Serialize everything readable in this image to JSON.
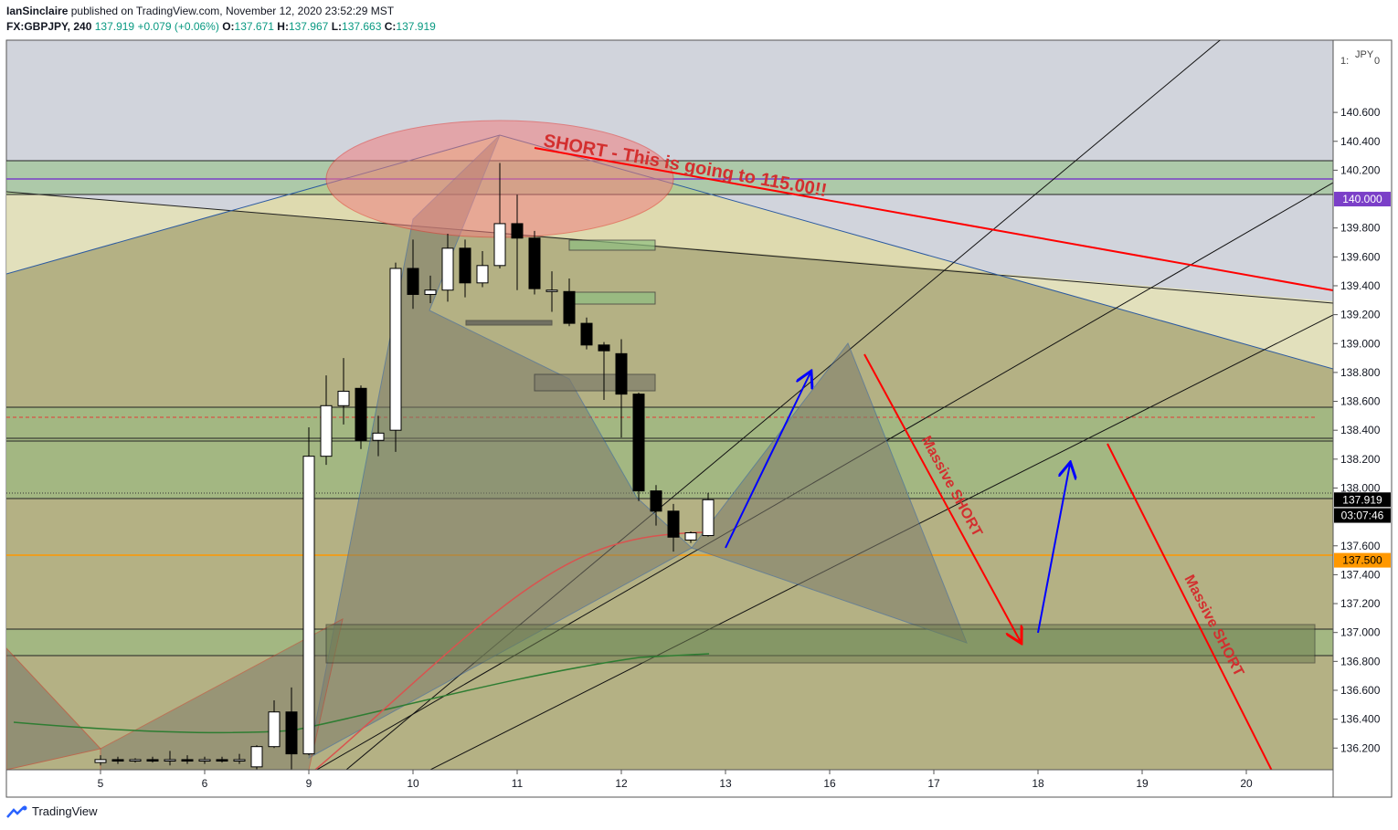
{
  "header": {
    "author": "IanSinclaire",
    "published_text": "published on TradingView.com, November 12, 2020 23:52:29 MST",
    "symbol": "FX:GBPJPY, 240",
    "last": "137.919",
    "change": "+0.079 (+0.06%)",
    "o_label": "O:",
    "o": "137.671",
    "h_label": "H:",
    "h": "137.967",
    "l_label": "L:",
    "l": "137.663",
    "c_label": "C:",
    "c": "137.919"
  },
  "footer": {
    "brand": "TradingView"
  },
  "chart_data": {
    "type": "candlestick",
    "currency": "JPY",
    "scale_top_label": "1:",
    "scale_top_right": "0",
    "ylim": [
      136.05,
      141.1
    ],
    "y_ticks": [
      "140.600",
      "140.400",
      "140.200",
      "139.800",
      "139.600",
      "139.400",
      "139.200",
      "139.000",
      "138.800",
      "138.600",
      "138.400",
      "138.200",
      "138.000",
      "137.600",
      "137.400",
      "137.200",
      "137.000",
      "136.800",
      "136.600",
      "136.400",
      "136.200"
    ],
    "x_ticks": [
      "5",
      "6",
      "9",
      "10",
      "11",
      "12",
      "13",
      "16",
      "17",
      "18",
      "19",
      "20"
    ],
    "price_labels": [
      {
        "price": 140.0,
        "text": "140.000",
        "color": "#7b3fc8"
      },
      {
        "price": 137.919,
        "text": "137.919",
        "color": "#000000"
      },
      {
        "price": 137.81,
        "text": "03:07:46",
        "color": "#000000"
      },
      {
        "price": 137.5,
        "text": "137.500",
        "color": "#ff9800"
      }
    ],
    "candles": [
      {
        "o": 136.1,
        "h": 136.15,
        "l": 136.08,
        "c": 136.12
      },
      {
        "o": 136.12,
        "h": 136.14,
        "l": 136.09,
        "c": 136.11
      },
      {
        "o": 136.11,
        "h": 136.13,
        "l": 136.1,
        "c": 136.12
      },
      {
        "o": 136.12,
        "h": 136.14,
        "l": 136.1,
        "c": 136.11
      },
      {
        "o": 136.11,
        "h": 136.18,
        "l": 136.08,
        "c": 136.12
      },
      {
        "o": 136.12,
        "h": 136.15,
        "l": 136.09,
        "c": 136.11
      },
      {
        "o": 136.11,
        "h": 136.14,
        "l": 136.09,
        "c": 136.12
      },
      {
        "o": 136.12,
        "h": 136.14,
        "l": 136.1,
        "c": 136.11
      },
      {
        "o": 136.11,
        "h": 136.16,
        "l": 136.09,
        "c": 136.12
      },
      {
        "o": 136.07,
        "h": 136.22,
        "l": 136.05,
        "c": 136.21
      },
      {
        "o": 136.21,
        "h": 136.53,
        "l": 136.2,
        "c": 136.45
      },
      {
        "o": 136.45,
        "h": 136.62,
        "l": 136.05,
        "c": 136.16
      },
      {
        "o": 136.16,
        "h": 138.42,
        "l": 136.15,
        "c": 138.22
      },
      {
        "o": 138.22,
        "h": 138.78,
        "l": 138.16,
        "c": 138.57
      },
      {
        "o": 138.57,
        "h": 138.9,
        "l": 138.44,
        "c": 138.67
      },
      {
        "o": 138.69,
        "h": 138.71,
        "l": 138.27,
        "c": 138.33
      },
      {
        "o": 138.33,
        "h": 138.5,
        "l": 138.22,
        "c": 138.38
      },
      {
        "o": 138.4,
        "h": 139.56,
        "l": 138.25,
        "c": 139.52
      },
      {
        "o": 139.52,
        "h": 139.72,
        "l": 139.24,
        "c": 139.34
      },
      {
        "o": 139.34,
        "h": 139.47,
        "l": 139.28,
        "c": 139.37
      },
      {
        "o": 139.37,
        "h": 139.76,
        "l": 139.29,
        "c": 139.66
      },
      {
        "o": 139.66,
        "h": 139.72,
        "l": 139.32,
        "c": 139.42
      },
      {
        "o": 139.42,
        "h": 139.64,
        "l": 139.39,
        "c": 139.54
      },
      {
        "o": 139.54,
        "h": 140.25,
        "l": 139.52,
        "c": 139.83
      },
      {
        "o": 139.83,
        "h": 140.03,
        "l": 139.37,
        "c": 139.73
      },
      {
        "o": 139.73,
        "h": 139.78,
        "l": 139.34,
        "c": 139.38
      },
      {
        "o": 139.36,
        "h": 139.5,
        "l": 139.22,
        "c": 139.37
      },
      {
        "o": 139.36,
        "h": 139.45,
        "l": 139.12,
        "c": 139.14
      },
      {
        "o": 139.14,
        "h": 139.18,
        "l": 138.96,
        "c": 138.99
      },
      {
        "o": 138.99,
        "h": 139.01,
        "l": 138.61,
        "c": 138.95
      },
      {
        "o": 138.93,
        "h": 139.03,
        "l": 138.35,
        "c": 138.65
      },
      {
        "o": 138.65,
        "h": 138.66,
        "l": 137.91,
        "c": 137.98
      },
      {
        "o": 137.98,
        "h": 138.02,
        "l": 137.74,
        "c": 137.84
      },
      {
        "o": 137.84,
        "h": 137.89,
        "l": 137.56,
        "c": 137.66
      },
      {
        "o": 137.64,
        "h": 137.7,
        "l": 137.62,
        "c": 137.69
      },
      {
        "o": 137.671,
        "h": 137.967,
        "l": 137.663,
        "c": 137.919
      }
    ],
    "annotations": {
      "short_text": "SHORT - This is going to 115.00!!",
      "massive_1": "Massive SHORT",
      "massive_2": "Massive SHORT"
    }
  },
  "colors": {
    "up": "#ffffff",
    "down": "#000000",
    "pink": "#e05a5a",
    "red_line": "#ff0000",
    "blue_arrow": "#0000ff",
    "orange": "#ff9800",
    "purple": "#7b3fc8",
    "ma_red": "#d9534f",
    "ma_green": "#2e7d32"
  }
}
